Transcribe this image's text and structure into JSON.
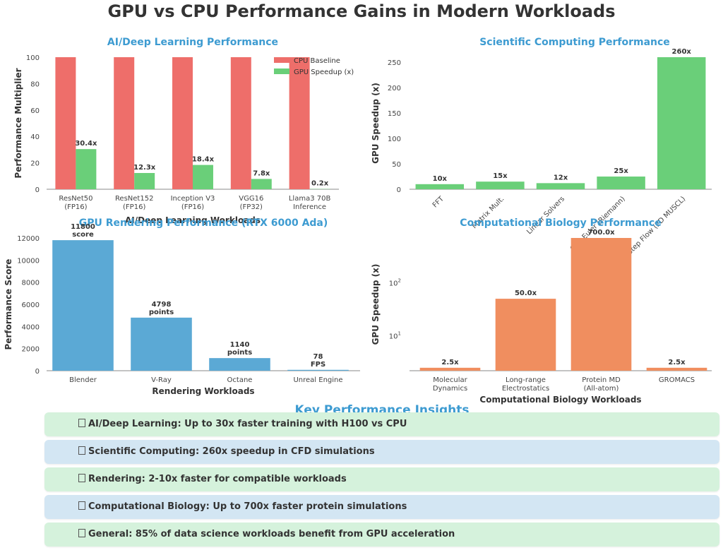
{
  "title": "GPU vs CPU Performance Gains in Modern Workloads",
  "chart_data": [
    {
      "type": "bar",
      "title": "AI/Deep Learning Performance",
      "xlabel": "AI/Deep Learning Workloads",
      "ylabel": "Performance Multiplier",
      "ylim": [
        0,
        100
      ],
      "yticks": [
        0,
        20,
        40,
        60,
        80,
        100
      ],
      "categories": [
        [
          "ResNet50",
          "(FP16)"
        ],
        [
          "ResNet152",
          "(FP16)"
        ],
        [
          "Inception V3",
          "(FP16)"
        ],
        [
          "VGG16",
          "(FP32)"
        ],
        [
          "Llama3 70B",
          "Inference"
        ]
      ],
      "series": [
        {
          "name": "CPU Baseline",
          "color": "#ee6e6a",
          "values": [
            100,
            100,
            100,
            100,
            100
          ]
        },
        {
          "name": "GPU Speedup (x)",
          "color": "#6acf79",
          "values": [
            30.4,
            12.3,
            18.4,
            7.8,
            0.2
          ],
          "labels": [
            "30.4x",
            "12.3x",
            "18.4x",
            "7.8x",
            "0.2x"
          ]
        }
      ],
      "legend": "top-right"
    },
    {
      "type": "bar",
      "title": "Scientific Computing Performance",
      "xlabel": "",
      "ylabel": "GPU Speedup (x)",
      "ylim": [
        0,
        260
      ],
      "yticks": [
        0,
        50,
        100,
        150,
        200,
        250
      ],
      "categories": [
        "FFT",
        "Matrix Mult.",
        "Linear Solvers",
        "CFD Euler (Riemann)",
        "Flux Step Flow (2D MUSCL)"
      ],
      "values": [
        10,
        15,
        12,
        25,
        260
      ],
      "labels": [
        "10x",
        "15x",
        "12x",
        "25x",
        "260x"
      ],
      "color": "#6acf79"
    },
    {
      "type": "bar",
      "title": "GPU Rendering Performance (RTX 6000 Ada)",
      "xlabel": "Rendering Workloads",
      "ylabel": "Performance Score",
      "ylim": [
        0,
        12000
      ],
      "yticks": [
        0,
        2000,
        4000,
        6000,
        8000,
        10000,
        12000
      ],
      "categories": [
        "Blender",
        "V-Ray",
        "Octane",
        "Unreal Engine"
      ],
      "values": [
        11800,
        4798,
        1140,
        78
      ],
      "labels": [
        [
          "11800",
          "score"
        ],
        [
          "4798",
          "points"
        ],
        [
          "1140",
          "points"
        ],
        [
          "78",
          "FPS"
        ]
      ],
      "color": "#5ba9d5"
    },
    {
      "type": "bar",
      "title": "Computational Biology Performance",
      "xlabel": "Computational Biology Workloads",
      "ylabel": "GPU Speedup (x)",
      "yscale": "log",
      "ylim": [
        2.2,
        700
      ],
      "ytick_labels": [
        "10^1",
        "10^2"
      ],
      "categories": [
        [
          "Molecular",
          "Dynamics"
        ],
        [
          "Long-range",
          "Electrostatics"
        ],
        [
          "Protein MD",
          "(All-atom)"
        ],
        [
          "GROMACS"
        ]
      ],
      "values": [
        2.5,
        50.0,
        700.0,
        2.5
      ],
      "labels": [
        "2.5x",
        "50.0x",
        "700.0x",
        "2.5x"
      ],
      "color": "#f08e5f"
    }
  ],
  "insights": {
    "title": "Key Performance Insights",
    "items": [
      {
        "text": "AI/Deep Learning: Up to 30x faster training with H100 vs CPU",
        "bg": "#d5f2dc"
      },
      {
        "text": "Scientific Computing: 260x speedup in CFD simulations",
        "bg": "#d3e6f3"
      },
      {
        "text": "Rendering: 2-10x faster for compatible workloads",
        "bg": "#d5f2dc"
      },
      {
        "text": "Computational Biology: Up to 700x faster protein simulations",
        "bg": "#d3e6f3"
      },
      {
        "text": "General: 85% of data science workloads benefit from GPU acceleration",
        "bg": "#d5f2dc"
      }
    ]
  }
}
